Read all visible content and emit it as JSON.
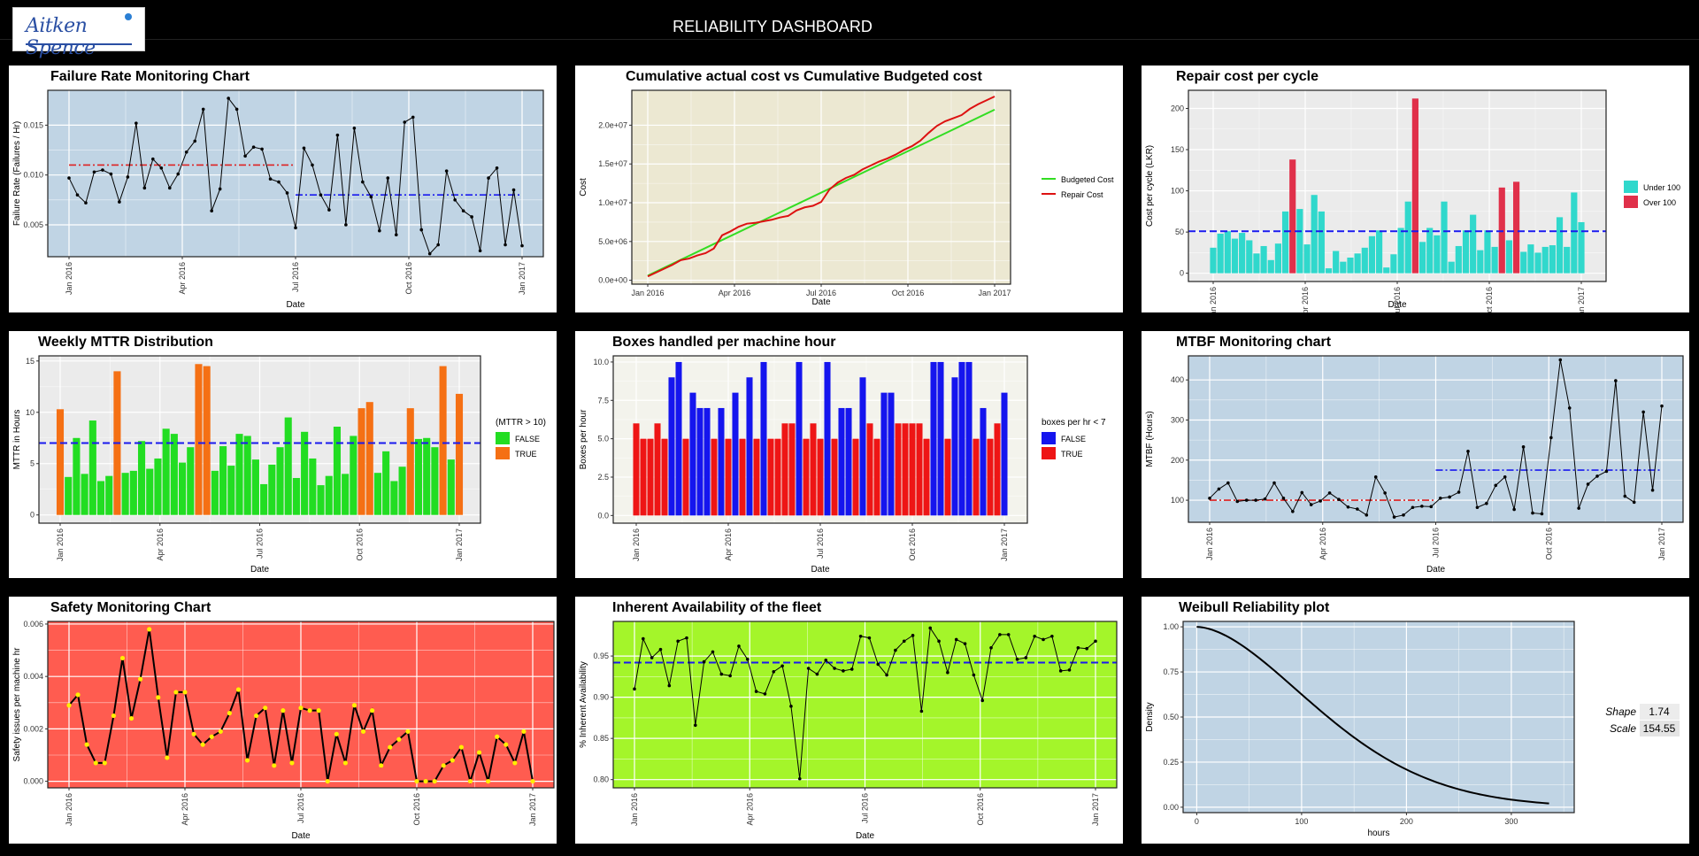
{
  "header": {
    "title": "RELIABILITY DASHBOARD",
    "logo_text": "Aitken Spence"
  },
  "chart_data": [
    {
      "id": "failure_rate",
      "type": "line",
      "title": "Failure Rate Monitoring Chart",
      "xlabel": "Date",
      "ylabel": "Failure Rate (Failures / Hr)",
      "background": "#c0d4e4",
      "x_ticks": [
        "Jan 2016",
        "Apr 2016",
        "Jul 2016",
        "Oct 2016",
        "Jan 2017"
      ],
      "y_ticks": [
        "0.005",
        "0.010",
        "0.015"
      ],
      "ylim": [
        0.0018,
        0.0185
      ],
      "series": [
        {
          "color": "#000000",
          "values": [
            0.0097,
            0.008,
            0.0072,
            0.0103,
            0.0105,
            0.0101,
            0.0073,
            0.0098,
            0.0152,
            0.0087,
            0.0116,
            0.0107,
            0.0087,
            0.0101,
            0.0123,
            0.0134,
            0.0166,
            0.0064,
            0.0086,
            0.0177,
            0.0166,
            0.0119,
            0.0128,
            0.0126,
            0.0096,
            0.0093,
            0.0082,
            0.0047,
            0.0127,
            0.011,
            0.008,
            0.0065,
            0.014,
            0.005,
            0.0147,
            0.0093,
            0.0078,
            0.0044,
            0.0097,
            0.004,
            0.0153,
            0.0158,
            0.0045,
            0.0021,
            0.003,
            0.0104,
            0.0075,
            0.0064,
            0.0058,
            0.0024,
            0.0097,
            0.0107,
            0.003,
            0.0085,
            0.0029
          ]
        }
      ],
      "reference_lines": [
        {
          "color": "#dd2222",
          "dash": "8,3,2,3",
          "value": 0.011,
          "x_from": 0.0,
          "x_to": 0.5
        },
        {
          "color": "#1a1aee",
          "dash": "8,3,2,3",
          "value": 0.008,
          "x_from": 0.5,
          "x_to": 1.0
        }
      ]
    },
    {
      "id": "cumulative_cost",
      "type": "line",
      "title": "Cumulative actual cost vs Cumulative Budgeted cost",
      "xlabel": "Date",
      "ylabel": "Cost",
      "background": "#ece8d2",
      "x_ticks": [
        "Jan 2016",
        "Apr 2016",
        "Jul 2016",
        "Oct 2016",
        "Jan 2017"
      ],
      "y_ticks": [
        "0.0e+00",
        "5.0e+06",
        "1.0e+07",
        "1.5e+07",
        "2.0e+07"
      ],
      "ylim": [
        -0.5,
        24.5
      ],
      "legend": {
        "position": "right",
        "items": [
          {
            "label": "Budgeted Cost",
            "color": "#33dd22"
          },
          {
            "label": "Repair Cost",
            "color": "#dd1111"
          }
        ]
      },
      "series": [
        {
          "name": "Budgeted Cost",
          "color": "#33dd22",
          "values": [
            0.6,
            22.0
          ]
        },
        {
          "name": "Repair Cost",
          "color": "#dd1111",
          "values": [
            0.5,
            1.0,
            1.5,
            2.0,
            2.6,
            2.8,
            3.2,
            3.5,
            4.1,
            5.8,
            6.3,
            6.9,
            7.3,
            7.4,
            7.6,
            7.8,
            8.1,
            8.3,
            9.0,
            9.4,
            9.6,
            10.1,
            11.7,
            12.6,
            13.2,
            13.6,
            14.3,
            14.8,
            15.3,
            15.7,
            16.2,
            16.8,
            17.3,
            18.0,
            19.0,
            19.9,
            20.5,
            20.9,
            21.3,
            22.1,
            22.7,
            23.2,
            23.7
          ]
        }
      ]
    },
    {
      "id": "repair_cost_per_cycle",
      "type": "bar",
      "title": "Repair cost per cycle",
      "xlabel": "Date",
      "ylabel": "Cost per cycle (LKR)",
      "background": "#ebebeb",
      "x_ticks": [
        "Jan 2016",
        "Apr 2016",
        "Jul 2016",
        "Oct 2016",
        "Jan 2017"
      ],
      "y_ticks": [
        "0",
        "50",
        "100",
        "150",
        "200"
      ],
      "ylim": [
        -10,
        222
      ],
      "reference_value": 51,
      "legend": {
        "position": "right",
        "items": [
          {
            "label": "Under 100",
            "color": "#30d8cc"
          },
          {
            "label": "Over 100",
            "color": "#e0304a"
          }
        ]
      },
      "colors": [
        "#30d8cc",
        "#e0304a"
      ],
      "values": [
        31,
        48,
        51,
        42,
        49,
        40,
        24,
        33,
        16,
        36,
        75,
        138,
        78,
        35,
        95,
        75,
        6,
        27,
        14,
        19,
        24,
        31,
        45,
        52,
        7,
        23,
        55,
        87,
        212,
        38,
        55,
        46,
        87,
        14,
        33,
        52,
        71,
        28,
        52,
        32,
        104,
        40,
        111,
        26,
        35,
        25,
        32,
        34,
        68,
        32,
        98,
        62
      ],
      "flags": [
        0,
        0,
        0,
        0,
        0,
        0,
        0,
        0,
        0,
        0,
        0,
        1,
        0,
        0,
        0,
        0,
        0,
        0,
        0,
        0,
        0,
        0,
        0,
        0,
        0,
        0,
        0,
        0,
        1,
        0,
        0,
        0,
        0,
        0,
        0,
        0,
        0,
        0,
        0,
        0,
        1,
        0,
        1,
        0,
        0,
        0,
        0,
        0,
        0,
        0,
        0,
        0
      ]
    },
    {
      "id": "weekly_mttr",
      "type": "bar",
      "title": "Weekly MTTR Distribution",
      "xlabel": "Date",
      "ylabel": "MTTR in Hours",
      "background": "#ebebeb",
      "x_ticks": [
        "Jan 2016",
        "Apr 2016",
        "Jul 2016",
        "Oct 2016",
        "Jan 2017"
      ],
      "y_ticks": [
        "0",
        "5",
        "10",
        "15"
      ],
      "ylim": [
        -0.8,
        15.5
      ],
      "reference_value": 7,
      "legend": {
        "title": "(MTTR > 10)",
        "position": "right",
        "items": [
          {
            "label": "FALSE",
            "color": "#22dd22"
          },
          {
            "label": "TRUE",
            "color": "#f57014"
          }
        ]
      },
      "colors": [
        "#22dd22",
        "#f57014"
      ],
      "values": [
        10.3,
        3.7,
        7.5,
        4.0,
        9.2,
        3.3,
        3.8,
        14.0,
        4.1,
        4.3,
        7.2,
        4.5,
        5.5,
        8.4,
        7.9,
        5.1,
        6.6,
        14.7,
        14.5,
        4.3,
        6.7,
        4.8,
        7.9,
        7.7,
        5.4,
        3.0,
        4.9,
        6.6,
        9.5,
        3.6,
        8.1,
        5.5,
        2.9,
        3.8,
        8.6,
        4.0,
        7.7,
        10.4,
        11.0,
        4.1,
        6.2,
        3.3,
        4.7,
        10.4,
        7.4,
        7.5,
        6.6,
        14.5,
        5.4,
        11.8
      ],
      "flags": [
        1,
        0,
        0,
        0,
        0,
        0,
        0,
        1,
        0,
        0,
        0,
        0,
        0,
        0,
        0,
        0,
        0,
        1,
        1,
        0,
        0,
        0,
        0,
        0,
        0,
        0,
        0,
        0,
        0,
        0,
        0,
        0,
        0,
        0,
        0,
        0,
        0,
        1,
        1,
        0,
        0,
        0,
        0,
        1,
        0,
        0,
        0,
        1,
        0,
        1
      ]
    },
    {
      "id": "boxes_per_hour",
      "type": "bar",
      "title": "Boxes handled per machine hour",
      "xlabel": "Date",
      "ylabel": "Boxes per hour",
      "background": "#f3f3ec",
      "x_ticks": [
        "Jan 2016",
        "Apr 2016",
        "Jul 2016",
        "Oct 2016",
        "Jan 2017"
      ],
      "y_ticks": [
        "0.0",
        "2.5",
        "5.0",
        "7.5",
        "10.0"
      ],
      "ylim": [
        -0.5,
        10.4
      ],
      "legend": {
        "title": "boxes per hr < 7",
        "position": "right",
        "items": [
          {
            "label": "FALSE",
            "color": "#1515ee"
          },
          {
            "label": "TRUE",
            "color": "#ee1515"
          }
        ]
      },
      "colors": [
        "#1515ee",
        "#ee1515"
      ],
      "values": [
        6,
        5,
        5,
        6,
        5,
        9,
        10,
        5,
        8,
        7,
        7,
        5,
        7,
        5,
        8,
        5,
        9,
        5,
        10,
        5,
        5,
        6,
        6,
        10,
        5,
        6,
        5,
        10,
        5,
        7,
        7,
        5,
        9,
        6,
        5,
        8,
        8,
        6,
        6,
        6,
        6,
        5,
        10,
        10,
        5,
        9,
        10,
        10,
        5,
        7,
        5,
        6,
        8
      ],
      "flags": [
        1,
        1,
        1,
        1,
        1,
        0,
        0,
        1,
        0,
        0,
        0,
        1,
        0,
        1,
        0,
        1,
        0,
        1,
        0,
        1,
        1,
        1,
        1,
        0,
        1,
        1,
        1,
        0,
        1,
        0,
        0,
        1,
        0,
        1,
        1,
        0,
        0,
        1,
        1,
        1,
        1,
        1,
        0,
        0,
        1,
        0,
        0,
        0,
        1,
        0,
        1,
        1,
        0
      ]
    },
    {
      "id": "mtbf",
      "type": "line",
      "title": "MTBF Monitoring chart",
      "xlabel": "Date",
      "ylabel": "MTBF (Hours)",
      "background": "#c0d4e4",
      "x_ticks": [
        "Jan 2016",
        "Apr 2016",
        "Jul 2016",
        "Oct 2016",
        "Jan 2017"
      ],
      "y_ticks": [
        "100",
        "200",
        "300",
        "400"
      ],
      "ylim": [
        45,
        460
      ],
      "series": [
        {
          "color": "#000000",
          "values": [
            105,
            128,
            143,
            97,
            100,
            100,
            103,
            143,
            105,
            72,
            119,
            89,
            98,
            118,
            102,
            83,
            78,
            63,
            158,
            118,
            58,
            63,
            82,
            85,
            84,
            105,
            108,
            120,
            222,
            82,
            92,
            137,
            158,
            77,
            233,
            68,
            66,
            256,
            450,
            330,
            80,
            140,
            160,
            172,
            398,
            110,
            95,
            320,
            125,
            335
          ]
        }
      ],
      "reference_lines": [
        {
          "color": "#dd2222",
          "dash": "8,3,2,3",
          "value": 100,
          "x_from": 0.0,
          "x_to": 0.5
        },
        {
          "color": "#1a1aee",
          "dash": "8,3,2,3",
          "value": 175,
          "x_from": 0.5,
          "x_to": 1.0
        }
      ]
    },
    {
      "id": "safety",
      "type": "line",
      "title": "Safety Monitoring Chart",
      "xlabel": "Date",
      "ylabel": "Safety issues per machine hr",
      "background": "#ff5c50",
      "x_ticks": [
        "Jan 2016",
        "Apr 2016",
        "Jul 2016",
        "Oct 2016",
        "Jan 2017"
      ],
      "y_ticks": [
        "0.000",
        "0.002",
        "0.004",
        "0.006"
      ],
      "ylim": [
        -0.00025,
        0.0061
      ],
      "series": [
        {
          "color": "#000000",
          "point_color": "#ffee00",
          "values": [
            0.0029,
            0.0033,
            0.0014,
            0.0007,
            0.0007,
            0.0025,
            0.0047,
            0.0024,
            0.0039,
            0.0058,
            0.0032,
            0.0009,
            0.0034,
            0.0034,
            0.0018,
            0.0014,
            0.0017,
            0.0019,
            0.0026,
            0.0035,
            0.0008,
            0.0025,
            0.0028,
            0.0006,
            0.0027,
            0.0007,
            0.0028,
            0.0027,
            0.0027,
            0.0,
            0.0018,
            0.0007,
            0.0029,
            0.0019,
            0.0027,
            0.0006,
            0.0013,
            0.0016,
            0.0019,
            0.0,
            0.0,
            0.0,
            0.0006,
            0.0008,
            0.0013,
            0.0,
            0.0011,
            0.0,
            0.0017,
            0.0014,
            0.0007,
            0.0019,
            0.0
          ]
        }
      ]
    },
    {
      "id": "availability",
      "type": "line",
      "title": "Inherent Availability of the fleet",
      "xlabel": "Date",
      "ylabel": "% Inherent Availability",
      "background": "#a4f52a",
      "x_ticks": [
        "Jan 2016",
        "Apr 2016",
        "Jul 2016",
        "Oct 2016",
        "Jan 2017"
      ],
      "y_ticks": [
        "0.80",
        "0.85",
        "0.90",
        "0.95"
      ],
      "ylim": [
        0.79,
        0.992
      ],
      "reference_value": 0.942,
      "series": [
        {
          "color": "#000000",
          "values": [
            0.91,
            0.971,
            0.948,
            0.958,
            0.914,
            0.968,
            0.972,
            0.866,
            0.943,
            0.955,
            0.928,
            0.926,
            0.962,
            0.946,
            0.907,
            0.904,
            0.931,
            0.938,
            0.889,
            0.801,
            0.935,
            0.928,
            0.945,
            0.935,
            0.932,
            0.934,
            0.974,
            0.972,
            0.94,
            0.927,
            0.957,
            0.968,
            0.975,
            0.883,
            0.984,
            0.968,
            0.93,
            0.97,
            0.965,
            0.927,
            0.896,
            0.96,
            0.976,
            0.976,
            0.946,
            0.948,
            0.974,
            0.97,
            0.974,
            0.932,
            0.933,
            0.96,
            0.959,
            0.968
          ]
        }
      ]
    },
    {
      "id": "weibull",
      "type": "line",
      "title": "Weibull Reliability plot",
      "xlabel": "hours",
      "ylabel": "Density",
      "background": "#c0d4e4",
      "x_ticks": [
        "0",
        "100",
        "200",
        "300"
      ],
      "x_tick_values": [
        0,
        100,
        200,
        300
      ],
      "y_ticks": [
        "0.00",
        "0.25",
        "0.50",
        "0.75",
        "1.00"
      ],
      "xlim": [
        -13,
        360
      ],
      "ylim": [
        -0.03,
        1.03
      ],
      "x_max": 337,
      "shape": 1.74,
      "scale": 154.55,
      "params": {
        "shape_label": "Shape",
        "shape_value": "1.74",
        "scale_label": "Scale",
        "scale_value": "154.55"
      }
    }
  ]
}
